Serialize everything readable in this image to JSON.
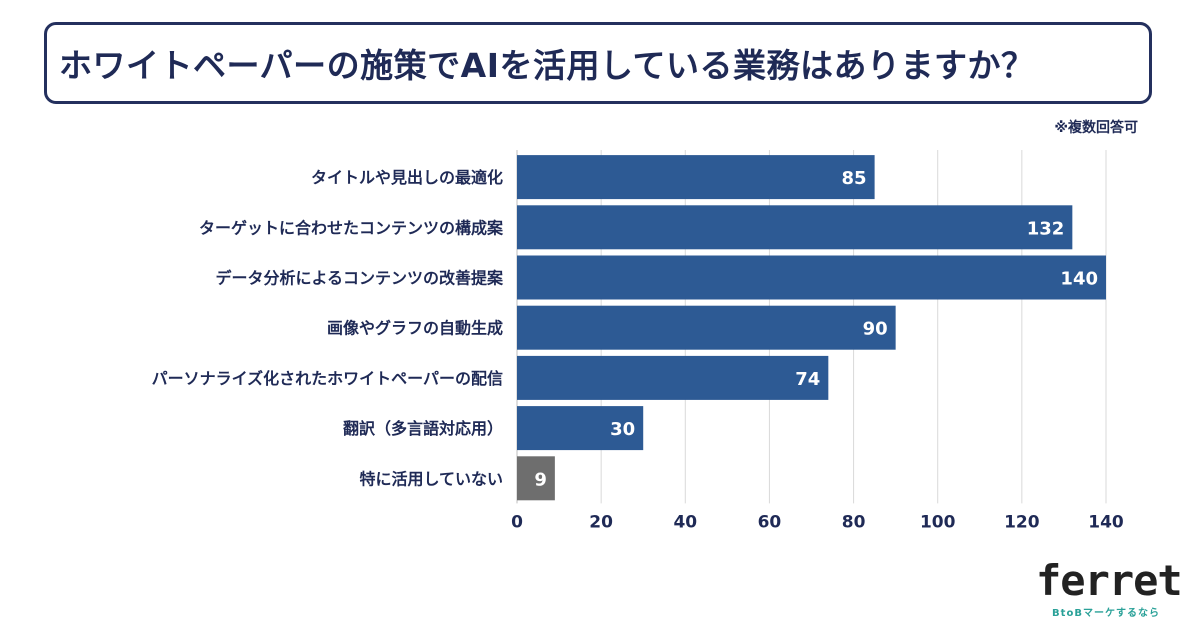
{
  "header": {
    "title": "ホワイトペーパーの施策でAIを活用している業務はありますか？",
    "note": "※複数回答可"
  },
  "chart_data": {
    "type": "bar",
    "orientation": "horizontal",
    "title": "ホワイトペーパーの施策でAIを活用している業務はありますか？",
    "categories": [
      "タイトルや見出しの最適化",
      "ターゲットに合わせたコンテンツの構成案",
      "データ分析によるコンテンツの改善提案",
      "画像やグラフの自動生成",
      "パーソナライズ化されたホワイトペーパーの配信",
      "翻訳（多言語対応用）",
      "特に活用していない"
    ],
    "values": [
      85,
      132,
      140,
      90,
      74,
      30,
      9
    ],
    "bar_colors": [
      "#2d5a94",
      "#2d5a94",
      "#2d5a94",
      "#2d5a94",
      "#2d5a94",
      "#2d5a94",
      "#6e6e6e"
    ],
    "xlim": [
      0,
      140
    ],
    "xticks": [
      0,
      20,
      40,
      60,
      80,
      100,
      120,
      140
    ],
    "grid": true,
    "xlabel": "",
    "ylabel": ""
  },
  "logo": {
    "name": "ferret",
    "tagline": "BtoBマーケするなら"
  },
  "colors": {
    "bar": "#2d5a94",
    "bar_none": "#6e6e6e",
    "text": "#1f2a56",
    "grid": "#d9d9d9",
    "logo_accent": "#2aa198"
  }
}
